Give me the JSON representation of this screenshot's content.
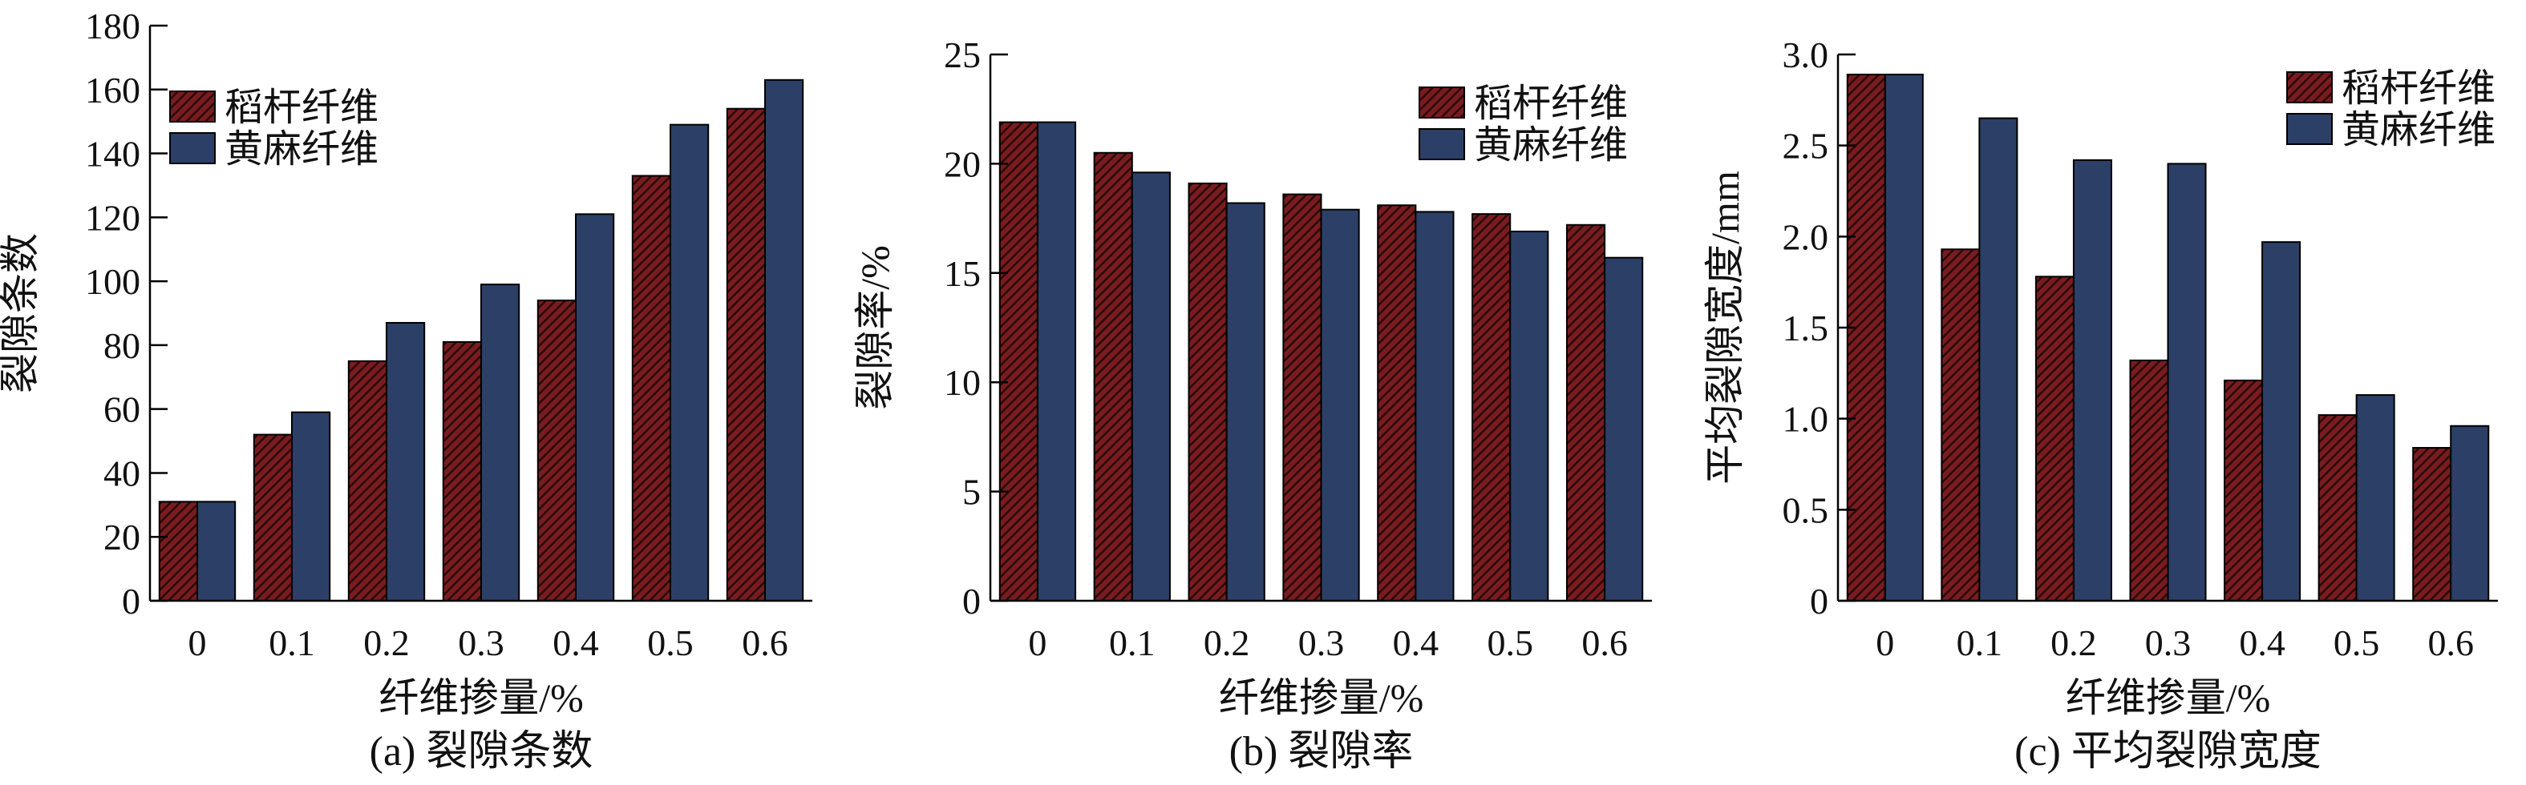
{
  "colors": {
    "rice_straw_fill": "#7a1c1f",
    "rice_straw_hatch": "#2a0b0c",
    "jute_fill": "#2c3f66",
    "axis": "#000000"
  },
  "chart_data": [
    {
      "type": "bar",
      "caption": "(a) 裂隙条数",
      "xlabel": "纤维掺量/%",
      "ylabel": "裂隙条数",
      "categories": [
        "0",
        "0.1",
        "0.2",
        "0.3",
        "0.4",
        "0.5",
        "0.6"
      ],
      "ylim": [
        0,
        180
      ],
      "yticks": [
        0,
        20,
        40,
        60,
        80,
        100,
        120,
        140,
        160,
        180
      ],
      "ytick_labels": [
        "0",
        "20",
        "40",
        "60",
        "80",
        "100",
        "120",
        "140",
        "160",
        "180"
      ],
      "legend_position": "top-left",
      "series": [
        {
          "name": "稻杆纤维",
          "pattern": "hatched",
          "values": [
            31,
            52,
            75,
            81,
            94,
            133,
            154
          ]
        },
        {
          "name": "黄麻纤维",
          "pattern": "solid",
          "values": [
            31,
            59,
            87,
            99,
            121,
            149,
            163
          ]
        }
      ]
    },
    {
      "type": "bar",
      "caption": "(b) 裂隙率",
      "xlabel": "纤维掺量/%",
      "ylabel": "裂隙率/%",
      "categories": [
        "0",
        "0.1",
        "0.2",
        "0.3",
        "0.4",
        "0.5",
        "0.6"
      ],
      "ylim": [
        0,
        25
      ],
      "yticks": [
        0,
        5,
        10,
        15,
        20,
        25
      ],
      "ytick_labels": [
        "0",
        "5",
        "10",
        "15",
        "20",
        "25"
      ],
      "legend_position": "top-right",
      "series": [
        {
          "name": "稻杆纤维",
          "pattern": "hatched",
          "values": [
            21.9,
            20.5,
            19.1,
            18.6,
            18.1,
            17.7,
            17.2
          ]
        },
        {
          "name": "黄麻纤维",
          "pattern": "solid",
          "values": [
            21.9,
            19.6,
            18.2,
            17.9,
            17.8,
            16.9,
            15.7
          ]
        }
      ]
    },
    {
      "type": "bar",
      "caption": "(c) 平均裂隙宽度",
      "xlabel": "纤维掺量/%",
      "ylabel": "平均裂隙宽度/mm",
      "categories": [
        "0",
        "0.1",
        "0.2",
        "0.3",
        "0.4",
        "0.5",
        "0.6"
      ],
      "ylim": [
        0,
        3.0
      ],
      "yticks": [
        0,
        0.5,
        1.0,
        1.5,
        2.0,
        2.5,
        3.0
      ],
      "ytick_labels": [
        "0",
        "0.5",
        "1.0",
        "1.5",
        "2.0",
        "2.5",
        "3.0"
      ],
      "legend_position": "top-right",
      "series": [
        {
          "name": "稻杆纤维",
          "pattern": "hatched",
          "values": [
            2.89,
            1.93,
            1.78,
            1.32,
            1.21,
            1.02,
            0.84
          ]
        },
        {
          "name": "黄麻纤维",
          "pattern": "solid",
          "values": [
            2.89,
            2.65,
            2.42,
            2.4,
            1.97,
            1.13,
            0.96
          ]
        }
      ]
    }
  ]
}
